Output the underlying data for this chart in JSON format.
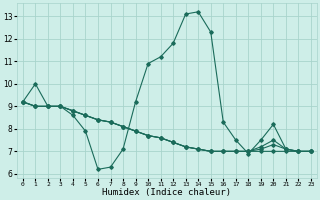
{
  "title": "",
  "xlabel": "Humidex (Indice chaleur)",
  "ylabel": "",
  "bg_color": "#ceeee8",
  "grid_color": "#a8d4cc",
  "line_color": "#1a6b5a",
  "xlim": [
    -0.5,
    23.5
  ],
  "ylim": [
    5.8,
    13.6
  ],
  "yticks": [
    6,
    7,
    8,
    9,
    10,
    11,
    12,
    13
  ],
  "xticks": [
    0,
    1,
    2,
    3,
    4,
    5,
    6,
    7,
    8,
    9,
    10,
    11,
    12,
    13,
    14,
    15,
    16,
    17,
    18,
    19,
    20,
    21,
    22,
    23
  ],
  "line1": [
    9.2,
    10.0,
    9.0,
    9.0,
    8.6,
    7.9,
    6.2,
    6.3,
    7.1,
    9.2,
    10.9,
    11.2,
    11.8,
    13.1,
    13.2,
    12.3,
    8.3,
    7.5,
    6.9,
    7.5,
    8.2,
    7.1,
    7.0,
    7.0
  ],
  "line2": [
    9.2,
    9.0,
    9.0,
    9.0,
    8.8,
    8.6,
    8.4,
    8.3,
    8.1,
    7.9,
    7.7,
    7.6,
    7.4,
    7.2,
    7.1,
    7.0,
    7.0,
    7.0,
    7.0,
    7.0,
    7.0,
    7.0,
    7.0,
    7.0
  ],
  "line3": [
    9.2,
    9.0,
    9.0,
    9.0,
    8.8,
    8.6,
    8.4,
    8.3,
    8.1,
    7.9,
    7.7,
    7.6,
    7.4,
    7.2,
    7.1,
    7.0,
    7.0,
    7.0,
    7.0,
    7.1,
    7.3,
    7.1,
    7.0,
    7.0
  ],
  "line4": [
    9.2,
    9.0,
    9.0,
    9.0,
    8.8,
    8.6,
    8.4,
    8.3,
    8.1,
    7.9,
    7.7,
    7.6,
    7.4,
    7.2,
    7.1,
    7.0,
    7.0,
    7.0,
    7.0,
    7.2,
    7.5,
    7.1,
    7.0,
    7.0
  ]
}
